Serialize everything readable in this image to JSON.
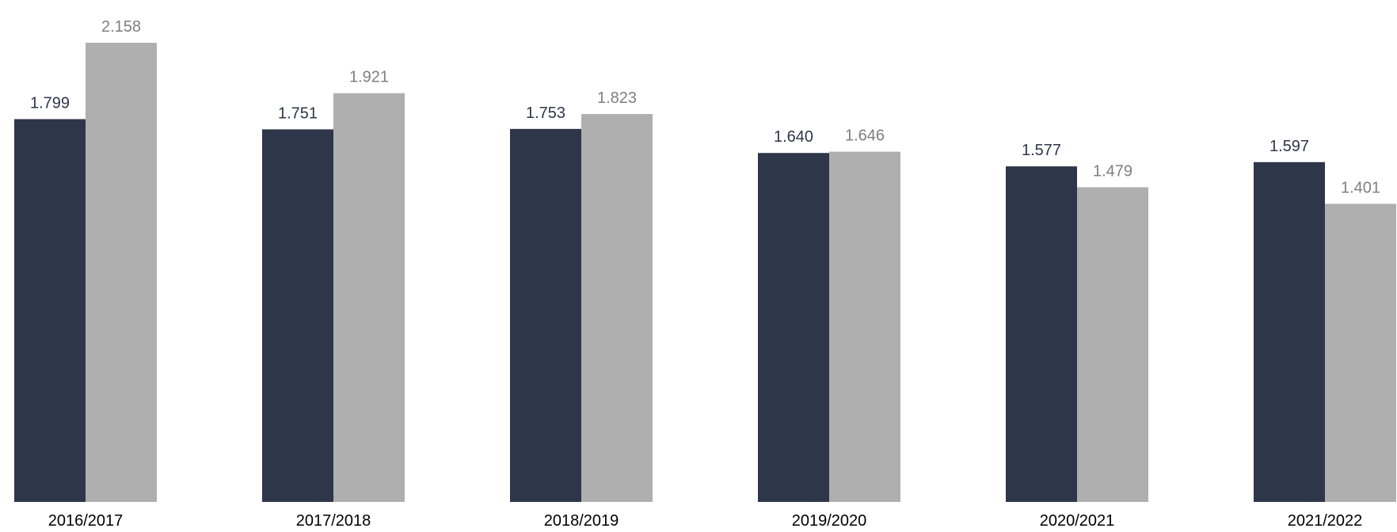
{
  "chart_data": {
    "type": "bar",
    "categories": [
      "2016/2017",
      "2017/2018",
      "2018/2019",
      "2019/2020",
      "2020/2021",
      "2021/2022"
    ],
    "series": [
      {
        "values": [
          1799,
          1751,
          1753,
          1640,
          1577,
          1597
        ],
        "labels": [
          "1.799",
          "1.751",
          "1.753",
          "1.640",
          "1.577",
          "1.597"
        ],
        "color": "#2e364a",
        "label_color": "#2e364a"
      },
      {
        "values": [
          2158,
          1921,
          1823,
          1646,
          1479,
          1401
        ],
        "labels": [
          "2.158",
          "1.921",
          "1.823",
          "1.646",
          "1.479",
          "1.401"
        ],
        "color": "#afafaf",
        "label_color": "#7f7f7f"
      }
    ],
    "title": "",
    "xlabel": "",
    "ylabel": "",
    "ylim": [
      0,
      2158
    ],
    "grid": false,
    "legend": "none"
  }
}
